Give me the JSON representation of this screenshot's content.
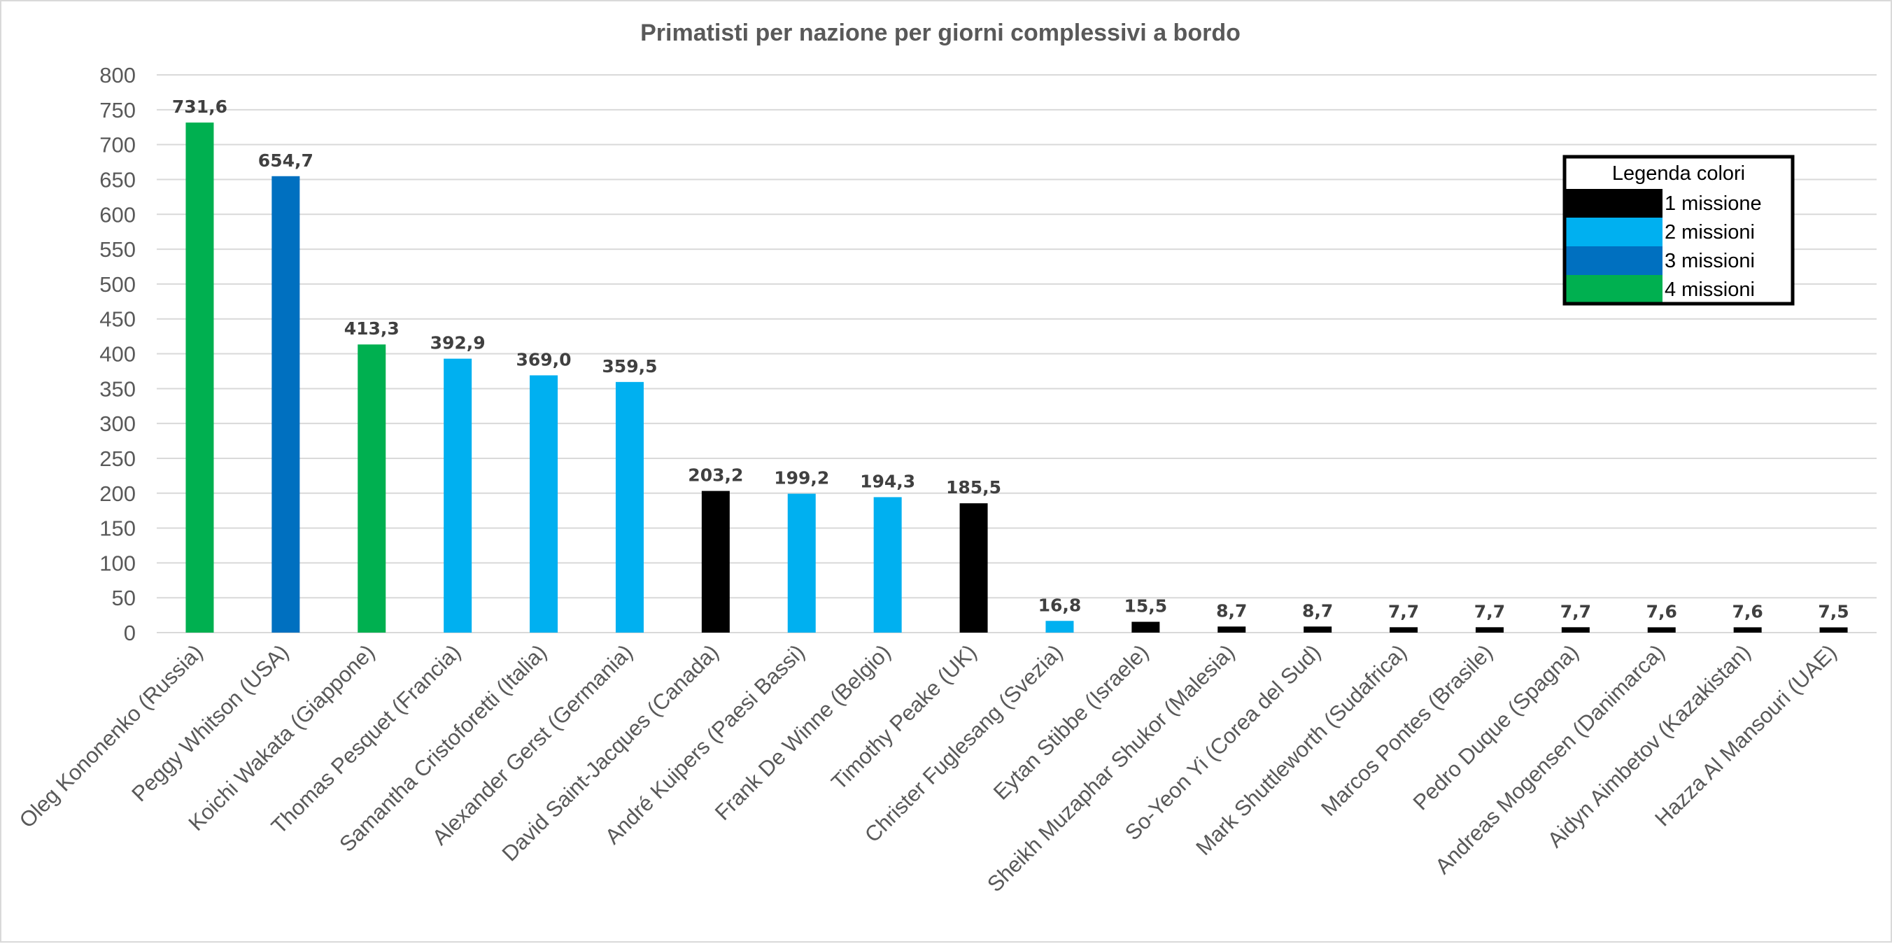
{
  "chart_data": {
    "type": "bar",
    "title": "Primatisti per nazione per giorni complessivi a bordo",
    "xlabel": "",
    "ylabel": "",
    "ylim": [
      0,
      800
    ],
    "yticks": [
      "0",
      "50",
      "100",
      "150",
      "200",
      "250",
      "300",
      "350",
      "400",
      "450",
      "500",
      "550",
      "600",
      "650",
      "700",
      "750",
      "800"
    ],
    "grid": true,
    "categories": [
      "Oleg Kononenko (Russia)",
      "Peggy Whitson (USA)",
      "Koichi Wakata (Giappone)",
      "Thomas Pesquet (Francia)",
      "Samantha Cristoforetti (Italia)",
      "Alexander Gerst (Germania)",
      "David Saint-Jacques (Canada)",
      "André Kuipers (Paesi Bassi)",
      "Frank De Winne (Belgio)",
      "Timothy Peake (UK)",
      "Christer Fuglesang (Svezia)",
      "Eytan Stibbe (Israele)",
      "Sheikh Muzaphar Shukor (Malesia)",
      "So-Yeon Yi (Corea del Sud)",
      "Mark Shuttleworth (Sudafrica)",
      "Marcos Pontes (Brasile)",
      "Pedro Duque (Spagna)",
      "Andreas Mogensen (Danimarca)",
      "Aidyn Aimbetov (Kazakistan)",
      "Hazza Al Mansouri (UAE)"
    ],
    "values": [
      731.6,
      654.7,
      413.3,
      392.9,
      369.0,
      359.5,
      203.2,
      199.2,
      194.3,
      185.5,
      16.8,
      15.5,
      8.7,
      8.7,
      7.7,
      7.7,
      7.7,
      7.6,
      7.6,
      7.5
    ],
    "data_labels": [
      "731,6",
      "654,7",
      "413,3",
      "392,9",
      "369,0",
      "359,5",
      "203,2",
      "199,2",
      "194,3",
      "185,5",
      "16,8",
      "15,5",
      "8,7",
      "8,7",
      "7,7",
      "7,7",
      "7,7",
      "7,6",
      "7,6",
      "7,5"
    ],
    "missions": [
      4,
      3,
      4,
      2,
      2,
      2,
      1,
      2,
      2,
      1,
      2,
      1,
      1,
      1,
      1,
      1,
      1,
      1,
      1,
      1
    ],
    "legend": {
      "title": "Legenda colori",
      "placement": "top-right",
      "entries": [
        {
          "label": "1 missione",
          "missions": 1,
          "color": "#000000"
        },
        {
          "label": "2 missioni",
          "missions": 2,
          "color": "#00b0f0"
        },
        {
          "label": "3 missioni",
          "missions": 3,
          "color": "#0070c0"
        },
        {
          "label": "4 missioni",
          "missions": 4,
          "color": "#00b050"
        }
      ]
    }
  }
}
